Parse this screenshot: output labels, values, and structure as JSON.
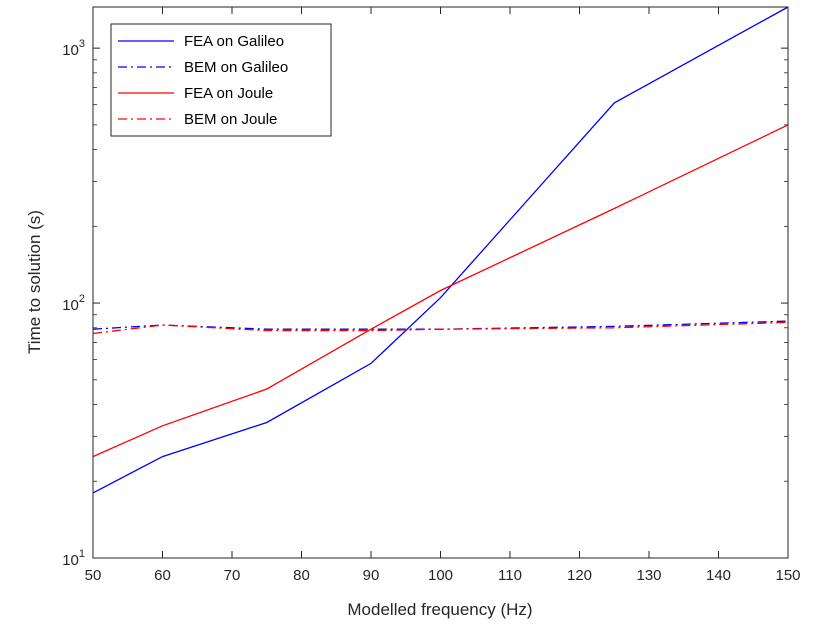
{
  "chart_data": {
    "type": "line",
    "title": "",
    "xlabel": "Modelled frequency (Hz)",
    "ylabel": "Time to solution (s)",
    "xlim": [
      50,
      150
    ],
    "ylim": [
      10,
      1450
    ],
    "yscale": "log",
    "x_ticks": [
      50,
      60,
      70,
      80,
      90,
      100,
      110,
      120,
      130,
      140,
      150
    ],
    "y_ticks": [
      {
        "value": 10,
        "base": "10",
        "exp": "1"
      },
      {
        "value": 100,
        "base": "10",
        "exp": "2"
      },
      {
        "value": 1000,
        "base": "10",
        "exp": "3"
      }
    ],
    "grid": false,
    "legend_position": "top-left",
    "series": [
      {
        "name": "FEA on Galileo",
        "color": "#0000ff",
        "style": "solid",
        "x": [
          50,
          60,
          75,
          90,
          100,
          125,
          150
        ],
        "values": [
          18,
          25,
          34,
          58,
          105,
          610,
          1450
        ]
      },
      {
        "name": "BEM on Galileo",
        "color": "#0000ff",
        "style": "dashdot",
        "x": [
          50,
          60,
          75,
          90,
          100,
          125,
          150
        ],
        "values": [
          79,
          82,
          79,
          79,
          79,
          81,
          85
        ]
      },
      {
        "name": "FEA on Joule",
        "color": "#ff0000",
        "style": "solid",
        "x": [
          50,
          60,
          75,
          90,
          100,
          125,
          150
        ],
        "values": [
          25,
          33,
          46,
          79,
          112,
          235,
          500
        ]
      },
      {
        "name": "BEM on Joule",
        "color": "#ff0000",
        "style": "dashdot",
        "x": [
          50,
          60,
          75,
          90,
          100,
          125,
          150
        ],
        "values": [
          76,
          82,
          78,
          78,
          79,
          80,
          84
        ]
      }
    ]
  }
}
